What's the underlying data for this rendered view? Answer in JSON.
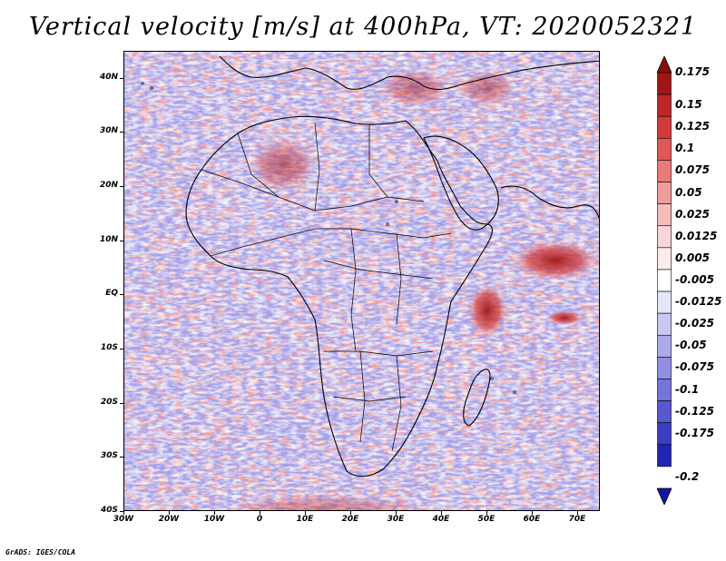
{
  "title": "Vertical velocity [m/s] at 400hPa, VT: 2020052321",
  "credit": "GrADS: IGES/COLA",
  "map": {
    "extent": {
      "lon_min": -30,
      "lon_max": 75,
      "lat_min": -40,
      "lat_max": 45
    },
    "lat_labels": [
      {
        "lat": 40,
        "text": "40N"
      },
      {
        "lat": 30,
        "text": "30N"
      },
      {
        "lat": 20,
        "text": "20N"
      },
      {
        "lat": 10,
        "text": "10N"
      },
      {
        "lat": 0,
        "text": "EQ"
      },
      {
        "lat": -10,
        "text": "10S"
      },
      {
        "lat": -20,
        "text": "20S"
      },
      {
        "lat": -30,
        "text": "30S"
      },
      {
        "lat": -40,
        "text": "40S"
      }
    ],
    "lon_labels": [
      {
        "lon": -30,
        "text": "30W"
      },
      {
        "lon": -20,
        "text": "20W"
      },
      {
        "lon": -10,
        "text": "10W"
      },
      {
        "lon": 0,
        "text": "0"
      },
      {
        "lon": 10,
        "text": "10E"
      },
      {
        "lon": 20,
        "text": "20E"
      },
      {
        "lon": 30,
        "text": "30E"
      },
      {
        "lon": 40,
        "text": "40E"
      },
      {
        "lon": 50,
        "text": "50E"
      },
      {
        "lon": 60,
        "text": "60E"
      },
      {
        "lon": 70,
        "text": "70E"
      }
    ]
  },
  "colorbar": {
    "levels": [
      {
        "label": "0.175",
        "color": "#a01616"
      },
      {
        "label": "0.15",
        "color": "#bd2727"
      },
      {
        "label": "0.125",
        "color": "#d23a3a"
      },
      {
        "label": "0.1",
        "color": "#e05757"
      },
      {
        "label": "0.075",
        "color": "#ea7a7a"
      },
      {
        "label": "0.05",
        "color": "#f09c9c"
      },
      {
        "label": "0.025",
        "color": "#f5bcbc"
      },
      {
        "label": "0.0125",
        "color": "#f9d6d6"
      },
      {
        "label": "0.005",
        "color": "#fcecec"
      },
      {
        "label": "-0.005",
        "color": "#ffffff"
      },
      {
        "label": "-0.0125",
        "color": "#e6e6fa"
      },
      {
        "label": "-0.025",
        "color": "#c8c8f3"
      },
      {
        "label": "-0.05",
        "color": "#ababec"
      },
      {
        "label": "-0.075",
        "color": "#8f8fe4"
      },
      {
        "label": "-0.1",
        "color": "#7474db"
      },
      {
        "label": "-0.125",
        "color": "#5858d1"
      },
      {
        "label": "-0.175",
        "color": "#3c3cc5"
      },
      {
        "label": "-0.2",
        "color": "#2323b5"
      }
    ],
    "top_color": "#8b0e0e",
    "bottom_color": "#1515a5"
  }
}
